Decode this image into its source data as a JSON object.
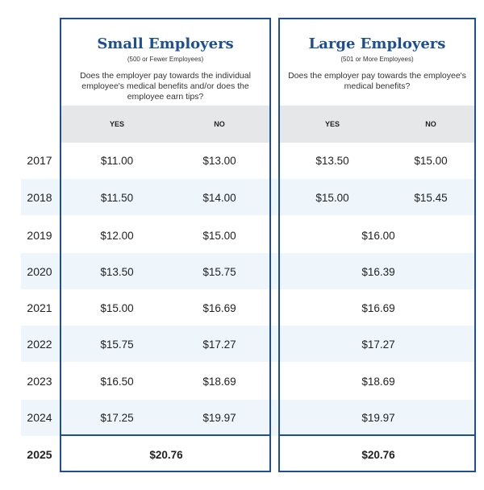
{
  "small": {
    "title": "Small Employers",
    "subtitle": "(500 or Fewer Employees)",
    "question": "Does the employer pay towards the individual employee's medical benefits and/or does the employee earn tips?",
    "yes_label": "YES",
    "no_label": "NO",
    "rows": [
      {
        "yes": "$11.00",
        "no": "$13.00"
      },
      {
        "yes": "$11.50",
        "no": "$14.00"
      },
      {
        "yes": "$12.00",
        "no": "$15.00"
      },
      {
        "yes": "$13.50",
        "no": "$15.75"
      },
      {
        "yes": "$15.00",
        "no": "$16.69"
      },
      {
        "yes": "$15.75",
        "no": "$17.27"
      },
      {
        "yes": "$16.50",
        "no": "$18.69"
      },
      {
        "yes": "$17.25",
        "no": "$19.97"
      }
    ],
    "final": "$20.76"
  },
  "large": {
    "title": "Large Employers",
    "subtitle": "(501 or More Employees)",
    "question": "Does the employer pay towards the employee's medical benefits?",
    "yes_label": "YES",
    "no_label": "NO",
    "rows": [
      {
        "yes": "$13.50",
        "no": "$15.00"
      },
      {
        "yes": "$15.00",
        "no": "$15.45"
      },
      {
        "single": "$16.00"
      },
      {
        "single": "$16.39"
      },
      {
        "single": "$16.69"
      },
      {
        "single": "$17.27"
      },
      {
        "single": "$18.69"
      },
      {
        "single": "$19.97"
      }
    ],
    "final": "$20.76"
  },
  "years": [
    "2017",
    "2018",
    "2019",
    "2020",
    "2021",
    "2022",
    "2023",
    "2024",
    "2025"
  ],
  "colors": {
    "accent": "#1d4f91",
    "header_band": "#e6e7e9",
    "stripe": "#eef6fc"
  }
}
